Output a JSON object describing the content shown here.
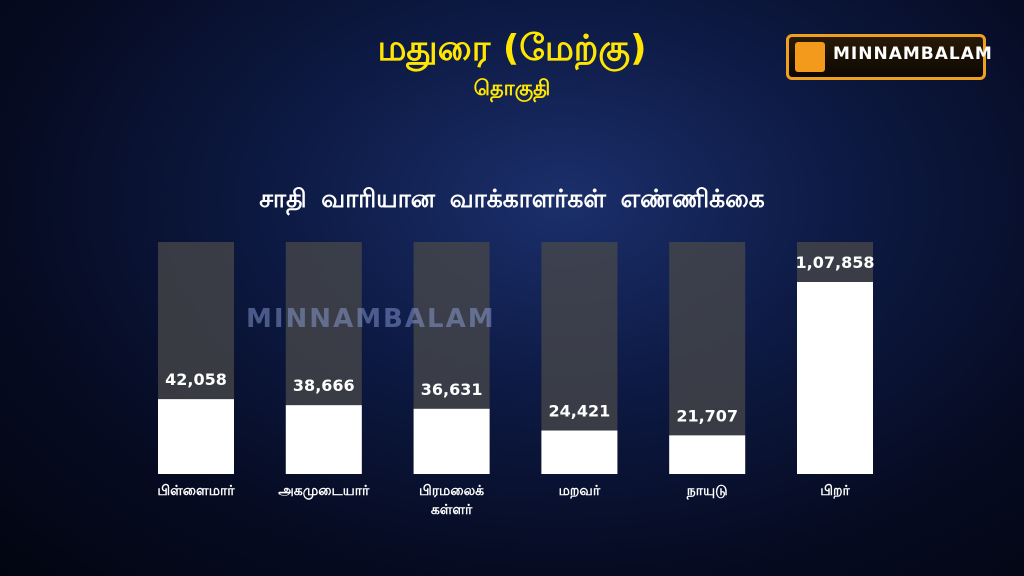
{
  "logo": "MINNAMBALAM",
  "watermark": "MINNAMBALAM",
  "chart_data": {
    "type": "bar",
    "title": "மதுரை (மேற்கு)",
    "subtitle": "தொகுதி",
    "heading": "சாதி வாரியான வாக்காளர்கள்  எண்ணிக்கை",
    "categories": [
      "பிள்ளைமார்",
      "அகமுடையார்",
      "பிரமலைக் கள்ளர்",
      "மறவர்",
      "நாயுடு",
      "பிறர்"
    ],
    "values": [
      42058,
      38666,
      36631,
      24421,
      21707,
      107858
    ],
    "value_labels": [
      "42,058",
      "38,666",
      "36,631",
      "24,421",
      "21,707",
      "1,07,858"
    ],
    "color": "#ffffff",
    "track_color": "#4a4a4a"
  }
}
